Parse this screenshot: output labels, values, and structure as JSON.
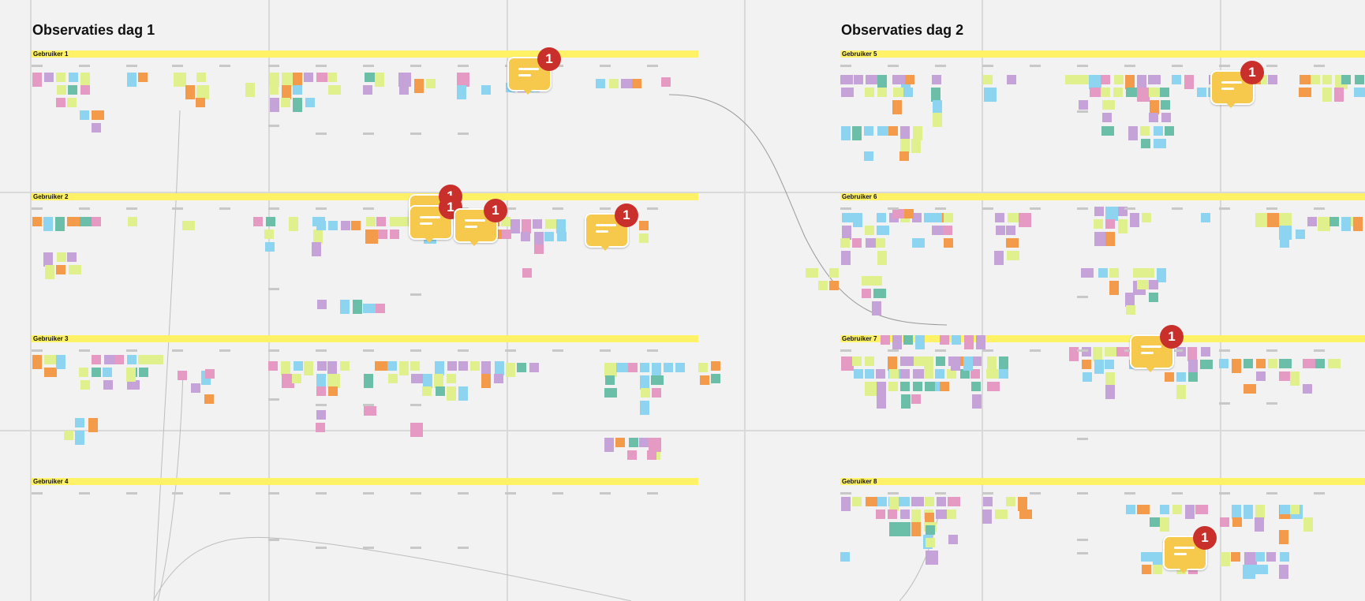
{
  "frames": [
    {
      "title": "Observaties dag 1",
      "users": [
        "Gebruiker 1",
        "Gebruiker 2",
        "Gebruiker 3",
        "Gebruiker 4"
      ]
    },
    {
      "title": "Observaties dag 2",
      "users": [
        "Gebruiker 5",
        "Gebruiker 6",
        "Gebruiker 7",
        "Gebruiker 8"
      ]
    }
  ],
  "comments": [
    "1",
    "1",
    "1",
    "1",
    "1",
    "1",
    "1",
    "1"
  ],
  "colors": {
    "background": "#f2f2f2",
    "band": "#fff266",
    "note_green": "#e0f08c",
    "note_blue": "#8cd4f0",
    "note_pink": "#e59ac4",
    "note_purple": "#c5a3d8",
    "note_orange": "#f39b4a",
    "note_teal": "#6bbfa8",
    "comment": "#f6c94c",
    "comment_badge": "#c9302c"
  }
}
